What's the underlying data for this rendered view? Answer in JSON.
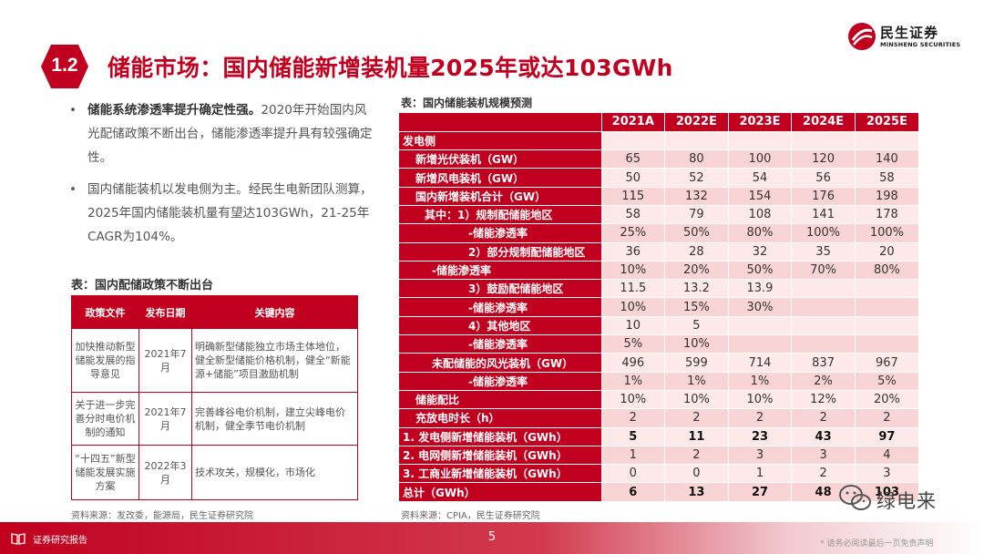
{
  "logo": {
    "name_cn": "民生证券",
    "name_en": "MINSHENG SECURITIES"
  },
  "section": {
    "number": "1.2",
    "title": "储能市场：国内储能新增装机量2025年或达103GWh"
  },
  "bullets": [
    {
      "bold": "储能系统渗透率提升确定性强。",
      "text": "2020年开始国内风光配储政策不断出台，储能渗透率提升具有较强确定性。"
    },
    {
      "bold": "",
      "text": "国内储能装机以发电侧为主。经民生电新团队测算，2025年国内储能装机量有望达103GWh，21-25年CAGR为104%。"
    }
  ],
  "left_table": {
    "title": "表：国内配储政策不断出台",
    "headers": [
      "政策文件",
      "发布日期",
      "关键内容"
    ],
    "rows": [
      {
        "doc": "加快推动新型储能发展的指导意见",
        "date": "2021年7月",
        "content": "明确新型储能独立市场主体地位，健全新型储能价格机制，健全“新能源+储能”项目激励机制"
      },
      {
        "doc": "关于进一步完善分时电价机制的通知",
        "date": "2021年7月",
        "content": "完善峰谷电价机制，建立尖峰电价机制，健全季节电价机制"
      },
      {
        "doc": "“十四五”新型储能发展实施方案",
        "date": "2022年3月",
        "content": "技术攻关，规模化，市场化"
      }
    ],
    "source": "资料来源：发改委，能源局，民生证券研究院"
  },
  "right_table": {
    "title": "表：国内储能装机规模预测",
    "headers": [
      "",
      "2021A",
      "2022E",
      "2023E",
      "2024E",
      "2025E"
    ],
    "rows": [
      {
        "label": "发电侧",
        "indent": 0,
        "values": [
          "",
          "",
          "",
          "",
          ""
        ]
      },
      {
        "label": "新增光伏装机（GW）",
        "indent": 1,
        "values": [
          "65",
          "80",
          "100",
          "120",
          "140"
        ]
      },
      {
        "label": "新增风电装机（GW）",
        "indent": 1,
        "values": [
          "50",
          "52",
          "54",
          "56",
          "58"
        ]
      },
      {
        "label": "国内新增装机合计（GW）",
        "indent": 1,
        "values": [
          "115",
          "132",
          "154",
          "176",
          "198"
        ]
      },
      {
        "label": "其中：1）规制配储能地区",
        "indent": 2,
        "values": [
          "58",
          "79",
          "108",
          "141",
          "178"
        ]
      },
      {
        "label": "-储能渗透率",
        "indent": 3,
        "values": [
          "25%",
          "50%",
          "80%",
          "100%",
          "100%"
        ]
      },
      {
        "label": "2）部分规制配储能地区",
        "indent": 3,
        "values": [
          "36",
          "28",
          "32",
          "35",
          "20"
        ]
      },
      {
        "label": "-储能渗透率",
        "indent": 4,
        "values": [
          "10%",
          "20%",
          "50%",
          "70%",
          "80%"
        ]
      },
      {
        "label": "3）鼓励配储能地区",
        "indent": 3,
        "values": [
          "11.5",
          "13.2",
          "13.9",
          "",
          ""
        ]
      },
      {
        "label": "-储能渗透率",
        "indent": 3,
        "values": [
          "10%",
          "15%",
          "30%",
          "",
          ""
        ]
      },
      {
        "label": "4）其他地区",
        "indent": 3,
        "values": [
          "10",
          "5",
          "",
          "",
          ""
        ]
      },
      {
        "label": "-储能渗透率",
        "indent": 3,
        "values": [
          "5%",
          "10%",
          "",
          "",
          ""
        ]
      },
      {
        "label": "未配储能的风光装机（GW）",
        "indent": 4,
        "values": [
          "496",
          "599",
          "714",
          "837",
          "967"
        ]
      },
      {
        "label": "-储能渗透率",
        "indent": 3,
        "values": [
          "1%",
          "1%",
          "1%",
          "2%",
          "5%"
        ]
      },
      {
        "label": "储能配比",
        "indent": 1,
        "values": [
          "10%",
          "10%",
          "10%",
          "12%",
          "20%"
        ]
      },
      {
        "label": "充放电时长（h）",
        "indent": 1,
        "values": [
          "2",
          "2",
          "2",
          "2",
          "2"
        ]
      },
      {
        "label": "1. 发电侧新增储能装机（GWh）",
        "indent": 0,
        "bold": true,
        "values": [
          "5",
          "11",
          "23",
          "43",
          "97"
        ]
      },
      {
        "label": "2. 电网侧新增储能装机（GWh）",
        "indent": 0,
        "values": [
          "1",
          "2",
          "3",
          "3",
          "4"
        ]
      },
      {
        "label": "3. 工商业新增储能装机（GWh）",
        "indent": 0,
        "values": [
          "0",
          "0",
          "1",
          "2",
          "3"
        ]
      },
      {
        "label": "总计（GWh）",
        "indent": 0,
        "bold": true,
        "values": [
          "6",
          "13",
          "27",
          "48",
          "103"
        ]
      }
    ],
    "source": "资料来源：CPIA，民生证券研究院"
  },
  "watermark": {
    "text": "绿电来"
  },
  "footer": {
    "label": "证券研究报告",
    "page": "5",
    "disclaimer": "* 请务必阅读最后一页免责声明"
  },
  "colors": {
    "brand_red": "#c0001e",
    "row_light": "#fde9e9",
    "row_alt": "#f9d4d4"
  }
}
